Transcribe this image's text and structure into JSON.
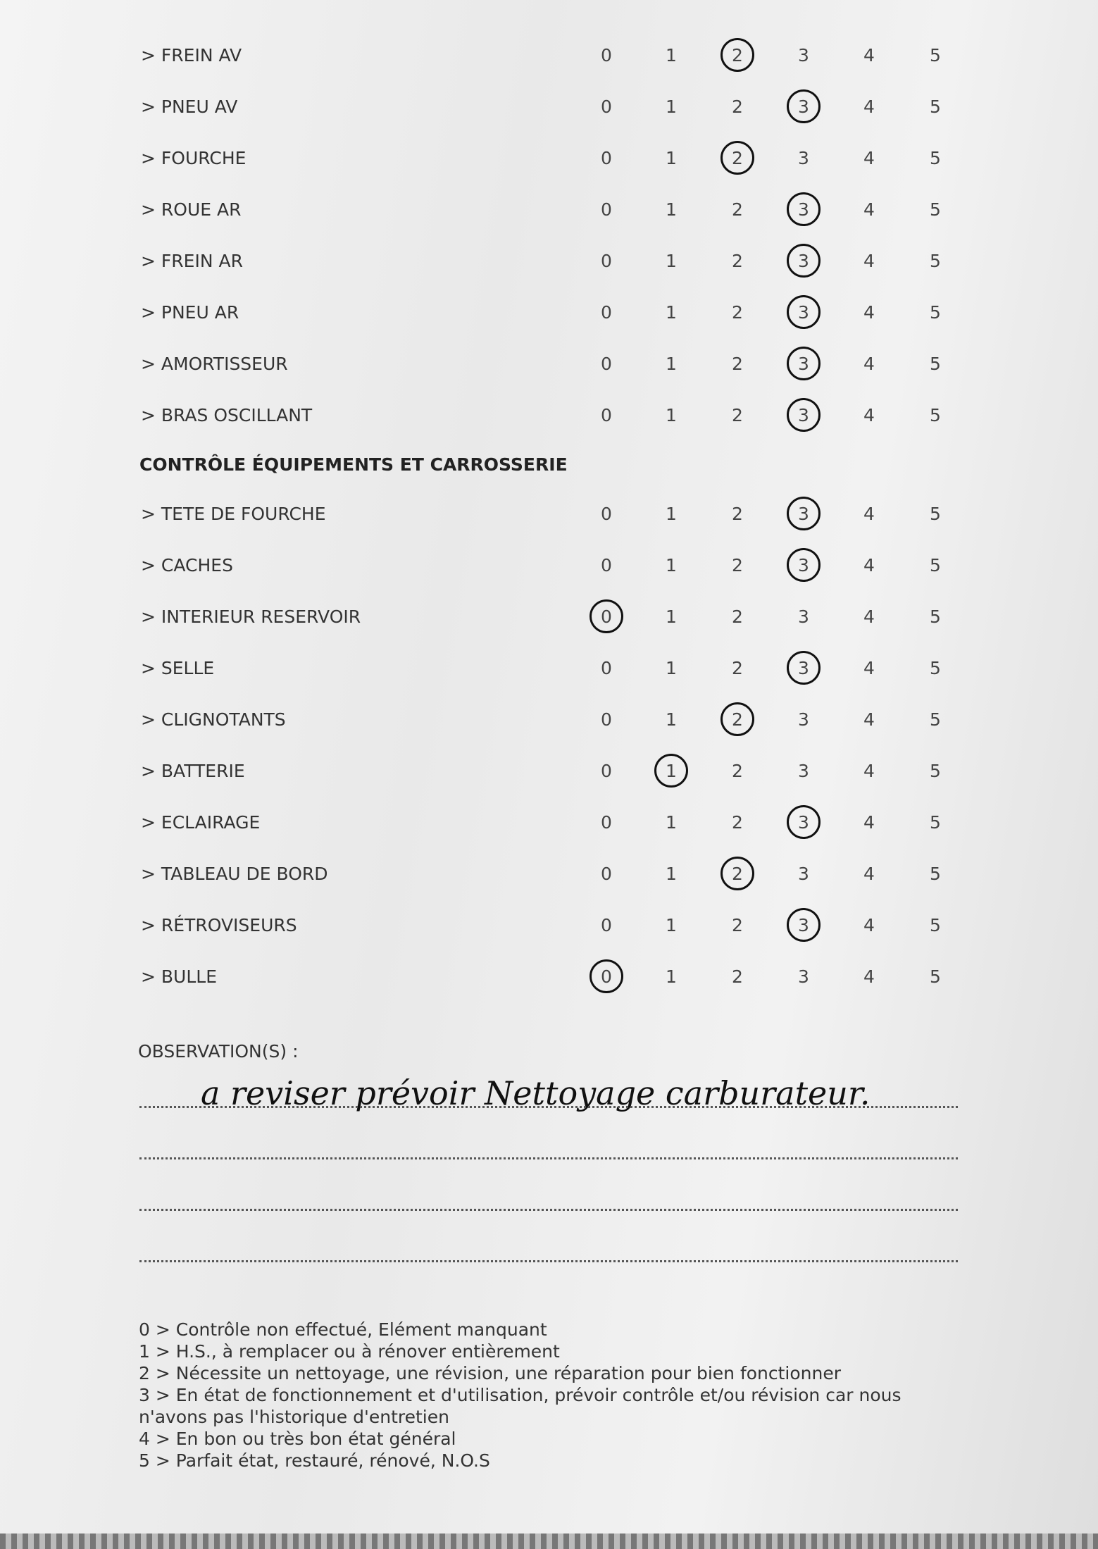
{
  "scale": [
    0,
    1,
    2,
    3,
    4,
    5
  ],
  "groups": [
    {
      "rows": [
        {
          "label": "> FREIN AV",
          "rating": 2
        },
        {
          "label": "> PNEU AV",
          "rating": 3
        },
        {
          "label": "> FOURCHE",
          "rating": 2
        },
        {
          "label": "> ROUE AR",
          "rating": 3
        },
        {
          "label": "> FREIN AR",
          "rating": 3
        },
        {
          "label": "> PNEU AR",
          "rating": 3
        },
        {
          "label": "> AMORTISSEUR",
          "rating": 3
        },
        {
          "label": "> BRAS OSCILLANT",
          "rating": 3
        }
      ]
    },
    {
      "title": "CONTRÔLE ÉQUIPEMENTS ET CARROSSERIE",
      "rows": [
        {
          "label": "> TETE DE FOURCHE",
          "rating": 3
        },
        {
          "label": "> CACHES",
          "rating": 3
        },
        {
          "label": "> INTERIEUR RESERVOIR",
          "rating": 0
        },
        {
          "label": "> SELLE",
          "rating": 3
        },
        {
          "label": "> CLIGNOTANTS",
          "rating": 2
        },
        {
          "label": "> BATTERIE",
          "rating": 1
        },
        {
          "label": "> ECLAIRAGE",
          "rating": 3
        },
        {
          "label": "> TABLEAU DE BORD",
          "rating": 2
        },
        {
          "label": "> RÉTROVISEURS",
          "rating": 3
        },
        {
          "label": "> BULLE",
          "rating": 0
        }
      ]
    }
  ],
  "observations": {
    "label": "OBSERVATION(S) :",
    "text": "a reviser prévoir Nettoyage carburateur."
  },
  "legend": [
    "0 > Contrôle non effectué, Elément manquant",
    "1 > H.S., à remplacer ou à rénover entièrement",
    "2 > Nécessite un nettoyage, une révision, une réparation pour bien fonctionner",
    "3 > En état de fonctionnement et d'utilisation, prévoir contrôle et/ou révision car nous n'avons pas l'historique d'entretien",
    "4 > En bon ou très bon état général",
    "5 > Parfait état, restauré, rénové, N.O.S"
  ]
}
